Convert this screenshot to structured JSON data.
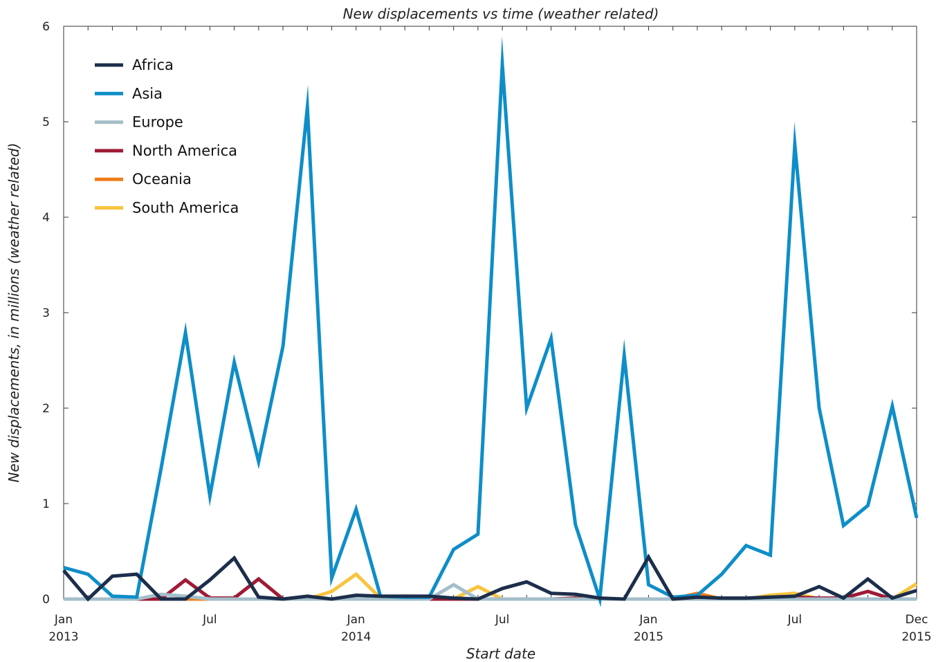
{
  "chart_data": {
    "type": "line",
    "title": "New displacements vs time (weather related)",
    "xlabel": "Start date",
    "ylabel": "New displacements, in millions (weather related)",
    "ylim": [
      0,
      6
    ],
    "y_ticks": [
      "0",
      "1",
      "2",
      "3",
      "4",
      "5",
      "6"
    ],
    "x_ticks": [
      {
        "index": 0,
        "line1": "Jan",
        "line2": "2013"
      },
      {
        "index": 6,
        "line1": "Jul",
        "line2": ""
      },
      {
        "index": 12,
        "line1": "Jan",
        "line2": "2014"
      },
      {
        "index": 18,
        "line1": "Jul",
        "line2": ""
      },
      {
        "index": 24,
        "line1": "Jan",
        "line2": "2015"
      },
      {
        "index": 30,
        "line1": "Jul",
        "line2": ""
      },
      {
        "index": 35,
        "line1": "Dec",
        "line2": "2015"
      }
    ],
    "x": [
      "2013-01",
      "2013-02",
      "2013-03",
      "2013-04",
      "2013-05",
      "2013-06",
      "2013-07",
      "2013-08",
      "2013-09",
      "2013-10",
      "2013-11",
      "2013-12",
      "2014-01",
      "2014-02",
      "2014-03",
      "2014-04",
      "2014-05",
      "2014-06",
      "2014-07",
      "2014-08",
      "2014-09",
      "2014-10",
      "2014-11",
      "2014-12",
      "2015-01",
      "2015-02",
      "2015-03",
      "2015-04",
      "2015-05",
      "2015-06",
      "2015-07",
      "2015-08",
      "2015-09",
      "2015-10",
      "2015-11",
      "2015-12"
    ],
    "grid": false,
    "legend_position": "top-left",
    "series": [
      {
        "name": "Africa",
        "color": "#1c2e4a",
        "values": [
          0.3,
          0.0,
          0.24,
          0.26,
          0.0,
          0.0,
          0.2,
          0.43,
          0.02,
          0.0,
          0.03,
          0.0,
          0.04,
          0.03,
          0.03,
          0.03,
          0.01,
          0.0,
          0.11,
          0.18,
          0.06,
          0.05,
          0.01,
          0.0,
          0.44,
          0.0,
          0.02,
          0.01,
          0.01,
          0.02,
          0.03,
          0.13,
          0.01,
          0.21,
          0.01,
          0.09
        ]
      },
      {
        "name": "Asia",
        "color": "#0e8ec8",
        "values": [
          0.33,
          0.26,
          0.03,
          0.02,
          1.37,
          2.79,
          1.08,
          2.48,
          1.44,
          2.65,
          5.15,
          0.22,
          0.94,
          0.03,
          0.02,
          0.02,
          0.52,
          0.68,
          5.6,
          2.0,
          2.73,
          0.78,
          0.0,
          2.55,
          0.15,
          0.02,
          0.04,
          0.26,
          0.56,
          0.46,
          4.76,
          2.0,
          0.77,
          0.98,
          2.02,
          0.85
        ]
      },
      {
        "name": "Europe",
        "color": "#a4bfca",
        "values": [
          0.0,
          0.0,
          0.0,
          0.0,
          0.05,
          0.03,
          0.0,
          0.0,
          0.0,
          0.0,
          0.0,
          0.0,
          0.0,
          0.0,
          0.0,
          0.0,
          0.15,
          0.0,
          0.0,
          0.0,
          0.0,
          0.0,
          0.0,
          0.0,
          0.0,
          0.0,
          0.0,
          0.0,
          0.0,
          0.0,
          0.0,
          0.0,
          0.0,
          0.0,
          0.0,
          0.0
        ]
      },
      {
        "name": "North America",
        "color": "#9e1a35",
        "values": [
          0.0,
          0.0,
          0.0,
          0.0,
          0.0,
          0.2,
          0.01,
          0.01,
          0.21,
          0.0,
          0.0,
          0.0,
          0.0,
          0.0,
          0.0,
          0.0,
          0.0,
          0.0,
          0.0,
          0.0,
          0.0,
          0.01,
          0.0,
          0.0,
          0.0,
          0.0,
          0.0,
          0.0,
          0.0,
          0.01,
          0.02,
          0.01,
          0.01,
          0.08,
          0.0,
          0.0
        ]
      },
      {
        "name": "Oceania",
        "color": "#ef7d1a",
        "values": [
          0.0,
          0.0,
          0.0,
          0.0,
          0.0,
          0.0,
          0.0,
          0.0,
          0.0,
          0.0,
          0.0,
          0.0,
          0.0,
          0.0,
          0.0,
          0.0,
          0.0,
          0.0,
          0.0,
          0.0,
          0.0,
          0.0,
          0.0,
          0.0,
          0.0,
          0.0,
          0.06,
          0.0,
          0.0,
          0.0,
          0.0,
          0.0,
          0.0,
          0.0,
          0.0,
          0.0
        ]
      },
      {
        "name": "South America",
        "color": "#f8c43e",
        "values": [
          0.0,
          0.0,
          0.0,
          0.0,
          0.0,
          0.0,
          0.0,
          0.0,
          0.0,
          0.0,
          0.0,
          0.08,
          0.26,
          0.01,
          0.0,
          0.0,
          0.0,
          0.13,
          0.0,
          0.0,
          0.0,
          0.0,
          0.0,
          0.0,
          0.0,
          0.0,
          0.03,
          0.0,
          0.0,
          0.04,
          0.06,
          0.0,
          0.0,
          0.0,
          0.0,
          0.16
        ]
      }
    ]
  }
}
